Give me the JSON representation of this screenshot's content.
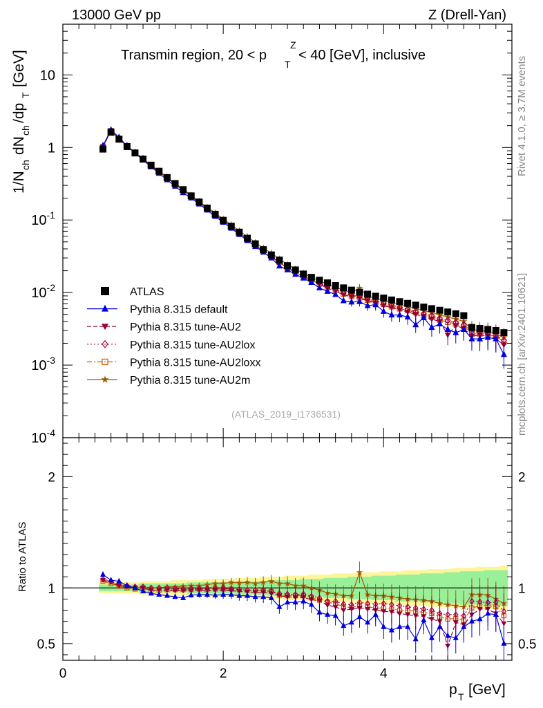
{
  "header": {
    "left": "13000 GeV pp",
    "right": "Z (Drell-Yan)"
  },
  "side": {
    "rivet": "Rivet 4.1.0, ≥ 3.7M events",
    "mcplots": "mcplots.cern.ch [arXiv:2401.10621]"
  },
  "chart_data": [
    {
      "type": "scatter",
      "title": "Transmin region, 20 < p_T^Z < 40 [GeV], inclusive",
      "xlabel": "p_T [GeV]",
      "ylabel": "1/N_ch dN_ch/dp_T [GeV]",
      "yscale": "log",
      "xlim": [
        0,
        5.6
      ],
      "ylim": [
        0.0001,
        50
      ],
      "ytick_labels": [
        "10",
        "1",
        "10^-1",
        "10^-2",
        "10^-3",
        "10^-4"
      ],
      "analysis_id": "(ATLAS_2019_I1736531)",
      "legend_position": "lower-left",
      "x": [
        0.5,
        0.6,
        0.7,
        0.8,
        0.9,
        1.0,
        1.1,
        1.2,
        1.3,
        1.4,
        1.5,
        1.6,
        1.7,
        1.8,
        1.9,
        2.0,
        2.1,
        2.2,
        2.3,
        2.4,
        2.5,
        2.6,
        2.7,
        2.8,
        2.9,
        3.0,
        3.1,
        3.2,
        3.3,
        3.4,
        3.5,
        3.6,
        3.7,
        3.8,
        3.9,
        4.0,
        4.1,
        4.2,
        4.3,
        4.4,
        4.5,
        4.6,
        4.7,
        4.8,
        4.9,
        5.0,
        5.1,
        5.2,
        5.3,
        5.4,
        5.5
      ],
      "series": [
        {
          "name": "ATLAS",
          "color": "#000000",
          "marker": "square",
          "line": "none",
          "values": [
            0.95,
            1.62,
            1.3,
            1.03,
            0.84,
            0.69,
            0.57,
            0.47,
            0.385,
            0.318,
            0.262,
            0.215,
            0.177,
            0.146,
            0.12,
            0.099,
            0.082,
            0.068,
            0.056,
            0.047,
            0.039,
            0.033,
            0.028,
            0.0235,
            0.0205,
            0.018,
            0.0162,
            0.0148,
            0.0136,
            0.0125,
            0.0116,
            0.0108,
            0.0101,
            0.0095,
            0.0089,
            0.0084,
            0.0079,
            0.0075,
            0.0071,
            0.0067,
            0.0063,
            0.006,
            0.0057,
            0.0054,
            0.0051,
            0.0048,
            0.0033,
            0.0032,
            0.0031,
            0.003,
            0.0028
          ]
        },
        {
          "name": "Pythia 8.315 default",
          "color": "#0000dd",
          "marker": "triangle-up",
          "line": "solid",
          "values": [
            1.06,
            1.74,
            1.38,
            1.05,
            0.84,
            0.67,
            0.54,
            0.44,
            0.358,
            0.292,
            0.238,
            0.201,
            0.166,
            0.137,
            0.112,
            0.093,
            0.077,
            0.063,
            0.052,
            0.043,
            0.036,
            0.03,
            0.0232,
            0.0205,
            0.0178,
            0.0158,
            0.0138,
            0.0116,
            0.0104,
            0.0094,
            0.0077,
            0.0074,
            0.0075,
            0.0066,
            0.0068,
            0.0055,
            0.0049,
            0.0049,
            0.0046,
            0.0036,
            0.0045,
            0.0033,
            0.0037,
            0.0031,
            0.0028,
            0.0031,
            0.0023,
            0.0023,
            0.0024,
            0.0023,
            0.0014
          ]
        },
        {
          "name": "Pythia 8.315 tune-AU2",
          "color": "#990033",
          "marker": "triangle-down",
          "line": "dashed",
          "values": [
            1.02,
            1.7,
            1.33,
            1.04,
            0.84,
            0.69,
            0.56,
            0.46,
            0.378,
            0.31,
            0.255,
            0.21,
            0.173,
            0.143,
            0.118,
            0.097,
            0.08,
            0.066,
            0.054,
            0.045,
            0.037,
            0.031,
            0.026,
            0.0217,
            0.0188,
            0.0165,
            0.0145,
            0.0131,
            0.0115,
            0.0104,
            0.0093,
            0.0087,
            0.0083,
            0.0077,
            0.0071,
            0.0066,
            0.0062,
            0.0058,
            0.0054,
            0.005,
            0.0047,
            0.0043,
            0.004,
            0.0026,
            0.0035,
            0.0032,
            0.0025,
            0.0026,
            0.0025,
            0.0023,
            0.0019
          ]
        },
        {
          "name": "Pythia 8.315 tune-AU2lox",
          "color": "#b0003c",
          "marker": "diamond-open",
          "line": "dotted",
          "values": [
            1.03,
            1.71,
            1.34,
            1.05,
            0.85,
            0.7,
            0.57,
            0.47,
            0.385,
            0.316,
            0.26,
            0.214,
            0.176,
            0.145,
            0.12,
            0.099,
            0.081,
            0.067,
            0.055,
            0.046,
            0.038,
            0.032,
            0.0265,
            0.0222,
            0.0193,
            0.017,
            0.015,
            0.0135,
            0.012,
            0.011,
            0.0099,
            0.0092,
            0.0088,
            0.0082,
            0.0076,
            0.0072,
            0.0067,
            0.0063,
            0.0059,
            0.0055,
            0.0051,
            0.0048,
            0.0044,
            0.0041,
            0.0039,
            0.0036,
            0.0029,
            0.0028,
            0.0027,
            0.0026,
            0.0022
          ]
        },
        {
          "name": "Pythia 8.315 tune-AU2loxx",
          "color": "#cc5500",
          "marker": "square-open",
          "line": "dashdot",
          "values": [
            1.01,
            1.69,
            1.32,
            1.03,
            0.83,
            0.69,
            0.56,
            0.46,
            0.38,
            0.313,
            0.258,
            0.212,
            0.175,
            0.144,
            0.119,
            0.098,
            0.081,
            0.067,
            0.055,
            0.046,
            0.038,
            0.032,
            0.0262,
            0.0218,
            0.019,
            0.0167,
            0.0148,
            0.0132,
            0.0118,
            0.0107,
            0.0096,
            0.0089,
            0.0085,
            0.0079,
            0.0073,
            0.0069,
            0.0064,
            0.006,
            0.0057,
            0.0053,
            0.0049,
            0.0046,
            0.0042,
            0.0039,
            0.0037,
            0.0034,
            0.0027,
            0.0027,
            0.0026,
            0.0025,
            0.0021
          ]
        },
        {
          "name": "Pythia 8.315 tune-AU2m",
          "color": "#9c5a00",
          "marker": "star",
          "line": "solid",
          "values": [
            1.02,
            1.7,
            1.32,
            1.04,
            0.84,
            0.69,
            0.57,
            0.47,
            0.39,
            0.322,
            0.266,
            0.219,
            0.181,
            0.15,
            0.125,
            0.103,
            0.086,
            0.071,
            0.059,
            0.049,
            0.041,
            0.035,
            0.029,
            0.0244,
            0.021,
            0.0184,
            0.0162,
            0.0145,
            0.013,
            0.0118,
            0.0108,
            0.01,
            0.0115,
            0.0089,
            0.0083,
            0.0078,
            0.0073,
            0.0068,
            0.0064,
            0.006,
            0.0056,
            0.0053,
            0.0049,
            0.0046,
            0.0043,
            0.004,
            0.0031,
            0.003,
            0.0029,
            0.0027,
            0.0024
          ]
        }
      ]
    },
    {
      "type": "scatter",
      "title": "",
      "xlabel": "p_T [GeV]",
      "ylabel": "Ratio to ATLAS",
      "yscale": "linear",
      "xlim": [
        0,
        5.6
      ],
      "ylim": [
        0.35,
        2.35
      ],
      "x_tick_labels": [
        "0",
        "2",
        "4"
      ],
      "y_tick_labels": [
        "0.5",
        "1",
        "2"
      ],
      "band_inner_halfwidth": [
        0.03,
        0.03,
        0.03,
        0.03,
        0.03,
        0.04,
        0.04,
        0.04,
        0.04,
        0.04,
        0.04,
        0.05,
        0.05,
        0.05,
        0.05,
        0.05,
        0.05,
        0.06,
        0.06,
        0.06,
        0.06,
        0.07,
        0.07,
        0.07,
        0.07,
        0.08,
        0.08,
        0.08,
        0.09,
        0.09,
        0.09,
        0.1,
        0.1,
        0.1,
        0.11,
        0.11,
        0.11,
        0.12,
        0.12,
        0.12,
        0.13,
        0.13,
        0.13,
        0.14,
        0.14,
        0.15,
        0.15,
        0.15,
        0.16,
        0.16,
        0.16
      ],
      "band_outer_halfwidth": [
        0.05,
        0.05,
        0.05,
        0.05,
        0.05,
        0.06,
        0.06,
        0.06,
        0.06,
        0.07,
        0.07,
        0.07,
        0.07,
        0.08,
        0.08,
        0.08,
        0.08,
        0.09,
        0.09,
        0.09,
        0.1,
        0.1,
        0.1,
        0.11,
        0.11,
        0.11,
        0.12,
        0.12,
        0.12,
        0.13,
        0.13,
        0.13,
        0.14,
        0.14,
        0.14,
        0.15,
        0.15,
        0.15,
        0.16,
        0.16,
        0.16,
        0.17,
        0.17,
        0.17,
        0.18,
        0.18,
        0.18,
        0.19,
        0.19,
        0.19,
        0.2
      ],
      "series": [
        {
          "name": "Pythia 8.315 default",
          "values": [
            1.12,
            1.07,
            1.06,
            1.02,
            1.0,
            0.97,
            0.95,
            0.94,
            0.93,
            0.92,
            0.91,
            0.935,
            0.94,
            0.94,
            0.935,
            0.94,
            0.94,
            0.93,
            0.93,
            0.92,
            0.92,
            0.91,
            0.83,
            0.87,
            0.87,
            0.88,
            0.85,
            0.78,
            0.76,
            0.75,
            0.66,
            0.69,
            0.74,
            0.69,
            0.76,
            0.65,
            0.62,
            0.65,
            0.65,
            0.54,
            0.71,
            0.55,
            0.65,
            0.57,
            0.55,
            0.65,
            0.7,
            0.72,
            0.77,
            0.76,
            0.5
          ]
        },
        {
          "name": "Pythia 8.315 tune-AU2",
          "values": [
            1.07,
            1.05,
            1.02,
            1.01,
            1.0,
            1.0,
            0.98,
            0.98,
            0.98,
            0.975,
            0.975,
            0.975,
            0.98,
            0.98,
            0.98,
            0.98,
            0.975,
            0.97,
            0.965,
            0.96,
            0.96,
            0.95,
            0.93,
            0.92,
            0.915,
            0.915,
            0.895,
            0.885,
            0.845,
            0.83,
            0.8,
            0.81,
            0.82,
            0.81,
            0.8,
            0.79,
            0.785,
            0.77,
            0.76,
            0.75,
            0.745,
            0.72,
            0.7,
            0.48,
            0.69,
            0.67,
            0.76,
            0.81,
            0.81,
            0.77,
            0.68
          ]
        },
        {
          "name": "Pythia 8.315 tune-AU2lox",
          "values": [
            1.08,
            1.06,
            1.03,
            1.02,
            1.01,
            1.01,
            1.0,
            1.0,
            1.0,
            0.995,
            0.99,
            0.995,
            0.995,
            0.995,
            1.0,
            1.0,
            0.99,
            0.985,
            0.98,
            0.98,
            0.975,
            0.97,
            0.95,
            0.945,
            0.94,
            0.945,
            0.925,
            0.91,
            0.88,
            0.88,
            0.855,
            0.85,
            0.87,
            0.86,
            0.855,
            0.86,
            0.85,
            0.84,
            0.83,
            0.82,
            0.81,
            0.8,
            0.77,
            0.76,
            0.76,
            0.75,
            0.88,
            0.875,
            0.87,
            0.87,
            0.79
          ]
        },
        {
          "name": "Pythia 8.315 tune-AU2loxx",
          "values": [
            1.06,
            1.04,
            1.015,
            1.0,
            0.99,
            1.0,
            0.98,
            0.98,
            0.985,
            0.985,
            0.985,
            0.985,
            0.99,
            0.985,
            0.99,
            0.99,
            0.99,
            0.985,
            0.98,
            0.98,
            0.975,
            0.97,
            0.935,
            0.93,
            0.93,
            0.93,
            0.915,
            0.89,
            0.87,
            0.86,
            0.83,
            0.825,
            0.84,
            0.83,
            0.82,
            0.82,
            0.81,
            0.8,
            0.8,
            0.79,
            0.78,
            0.77,
            0.74,
            0.72,
            0.725,
            0.71,
            0.82,
            0.84,
            0.84,
            0.83,
            0.75
          ]
        },
        {
          "name": "Pythia 8.315 tune-AU2m",
          "values": [
            1.07,
            1.05,
            1.02,
            1.01,
            1.0,
            1.0,
            1.0,
            1.0,
            1.01,
            1.01,
            1.015,
            1.02,
            1.02,
            1.03,
            1.04,
            1.04,
            1.05,
            1.045,
            1.05,
            1.04,
            1.05,
            1.06,
            1.04,
            1.04,
            1.02,
            1.02,
            1.0,
            0.98,
            0.955,
            0.945,
            0.93,
            0.93,
            1.14,
            0.94,
            0.93,
            0.93,
            0.92,
            0.91,
            0.9,
            0.895,
            0.89,
            0.88,
            0.86,
            0.85,
            0.84,
            0.83,
            0.94,
            0.94,
            0.935,
            0.9,
            0.86
          ]
        }
      ]
    }
  ]
}
